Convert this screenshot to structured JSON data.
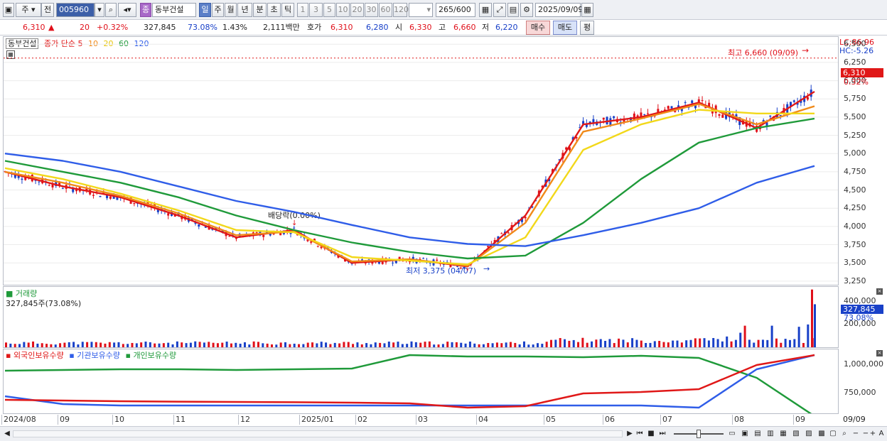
{
  "toolbar": {
    "period_type": "주",
    "prev_label": "전",
    "code": "005960",
    "stock_badge": "종",
    "stock_name": "동부건설",
    "tabs": [
      "일",
      "주",
      "월",
      "년",
      "분",
      "초",
      "틱"
    ],
    "intervals": [
      "1",
      "3",
      "5",
      "10",
      "20",
      "30",
      "60",
      "120"
    ],
    "count": "265",
    "count_total": "/600",
    "date": "2025/09/09"
  },
  "quote": {
    "price": "6,310",
    "change": "20",
    "change_pct": "+0.32%",
    "volume": "327,845",
    "volume_ratio": "73.08%",
    "turnover": "1.43%",
    "amount": "2,111백만",
    "bid_label": "호가",
    "bid": "6,310",
    "ask": "6,280",
    "open_label": "시",
    "open": "6,330",
    "high_label": "고",
    "high": "6,660",
    "low_label": "저",
    "low": "6,220",
    "buy_label": "매수",
    "sell_label": "매도",
    "avg_label": "평"
  },
  "price_panel": {
    "stock_label": "동부건설",
    "ma_title": "종가 단순",
    "ma_labels": [
      "5",
      "10",
      "20",
      "60",
      "120"
    ],
    "ma_colors": [
      "#e01818",
      "#f08a1a",
      "#f2d81a",
      "#1f9a3a",
      "#2f5de8"
    ],
    "lc": "LC:86.96",
    "hc": "HC:-5.26",
    "price_tag": "6,310",
    "price_tag_pct": "0.32%",
    "high_annotation": "최고 6,660 (09/09)",
    "low_annotation": "최저 3,375 (04/07)",
    "dividend_annotation": "배당락(0.00%)",
    "y_ticks": [
      "6,500",
      "6,250",
      "6,000",
      "5,750",
      "5,500",
      "5,250",
      "5,000",
      "4,750",
      "4,500",
      "4,250",
      "4,000",
      "3,750",
      "3,500",
      "3,250"
    ]
  },
  "volume_panel": {
    "title": "거래량",
    "value_line": "327,845주(73.08%)",
    "y_ticks": [
      "400,000",
      "200,000"
    ],
    "tag": "327,845",
    "tag_pct": "73.08%"
  },
  "holding_panel": {
    "labels": [
      "외국인보유수량",
      "기관보유수량",
      "개인보유수량"
    ],
    "y_ticks": [
      "1,000,000",
      "750,000"
    ]
  },
  "x_axis": [
    "2024/08",
    "09",
    "10",
    "11",
    "12",
    "2025/01",
    "02",
    "03",
    "04",
    "05",
    "06",
    "07",
    "08",
    "09"
  ],
  "x_axis_right": "09/09",
  "colors": {
    "up": "#e0101a",
    "down": "#1840c8",
    "foreign": "#2f5de8",
    "institution": "#e01818",
    "individual": "#1f9a3a",
    "accent": "#5b7fc8"
  },
  "chart_data": {
    "type": "line",
    "x": [
      "2024/08",
      "09",
      "10",
      "11",
      "12",
      "2025/01",
      "02",
      "03",
      "04",
      "05",
      "06",
      "07",
      "08",
      "09",
      "09/09"
    ],
    "series": [
      {
        "name": "5",
        "values": [
          4750,
          4550,
          4400,
          4150,
          3850,
          3950,
          3500,
          3550,
          3450,
          4150,
          5400,
          5500,
          5700,
          5350,
          5850
        ]
      },
      {
        "name": "10",
        "values": [
          4750,
          4600,
          4420,
          4180,
          3880,
          3930,
          3520,
          3550,
          3460,
          4050,
          5300,
          5480,
          5680,
          5400,
          5650
        ]
      },
      {
        "name": "20",
        "values": [
          4800,
          4650,
          4450,
          4220,
          3950,
          3920,
          3580,
          3530,
          3480,
          3850,
          5050,
          5400,
          5600,
          5550,
          5550
        ]
      },
      {
        "name": "60",
        "values": [
          4900,
          4750,
          4600,
          4400,
          4150,
          3950,
          3780,
          3650,
          3560,
          3600,
          4050,
          4650,
          5150,
          5350,
          5480
        ]
      },
      {
        "name": "120",
        "values": [
          5000,
          4900,
          4750,
          4550,
          4350,
          4200,
          4020,
          3850,
          3760,
          3730,
          3880,
          4050,
          4250,
          4600,
          4830
        ]
      }
    ],
    "ylim": [
      3200,
      6600
    ],
    "ylabel": "",
    "xlabel": ""
  }
}
